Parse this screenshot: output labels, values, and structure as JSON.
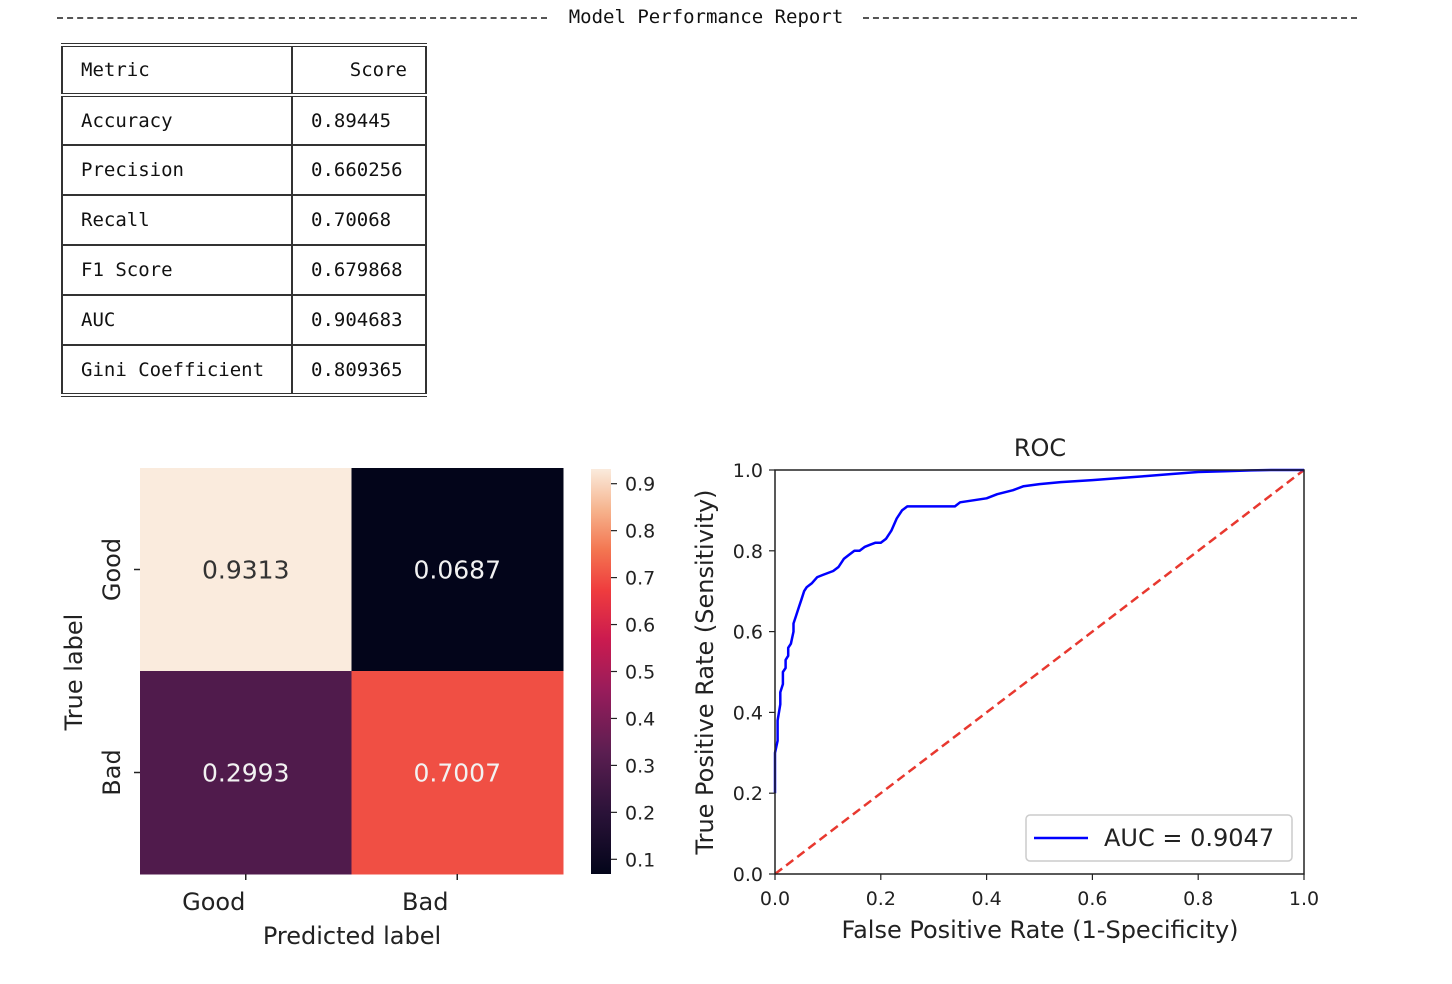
{
  "report": {
    "title": "Model Performance Report",
    "table": {
      "headers": [
        "Metric",
        "Score"
      ],
      "rows": [
        {
          "metric": "Accuracy",
          "score": "0.89445"
        },
        {
          "metric": "Precision",
          "score": "0.660256"
        },
        {
          "metric": "Recall",
          "score": "0.70068"
        },
        {
          "metric": "F1 Score",
          "score": "0.679868"
        },
        {
          "metric": "AUC",
          "score": "0.904683"
        },
        {
          "metric": "Gini Coefficient",
          "score": "0.809365"
        }
      ]
    }
  },
  "chart_data": [
    {
      "type": "heatmap",
      "title": "",
      "xlabel": "Predicted label",
      "ylabel": "True label",
      "x_categories": [
        "Good",
        "Bad"
      ],
      "y_categories": [
        "Good",
        "Bad"
      ],
      "values": [
        [
          0.9313,
          0.0687
        ],
        [
          0.2993,
          0.7007
        ]
      ],
      "value_labels": [
        [
          "0.9313",
          "0.0687"
        ],
        [
          "0.2993",
          "0.7007"
        ]
      ],
      "colorbar": {
        "ticks": [
          0.1,
          0.2,
          0.3,
          0.4,
          0.5,
          0.6,
          0.7,
          0.8,
          0.9
        ],
        "tick_labels": [
          "0.1",
          "0.2",
          "0.3",
          "0.4",
          "0.5",
          "0.6",
          "0.7",
          "0.8",
          "0.9"
        ],
        "range": [
          0.0687,
          0.9313
        ],
        "colormap": "rocket"
      }
    },
    {
      "type": "line",
      "title": "ROC",
      "xlabel": "False Positive Rate (1-Specificity)",
      "ylabel": "True Positive Rate (Sensitivity)",
      "xlim": [
        0.0,
        1.0
      ],
      "ylim": [
        0.0,
        1.0
      ],
      "x_ticks": [
        "0.0",
        "0.2",
        "0.4",
        "0.6",
        "0.8",
        "1.0"
      ],
      "y_ticks": [
        "0.0",
        "0.2",
        "0.4",
        "0.6",
        "0.8",
        "1.0"
      ],
      "legend": {
        "placement": "lower-right",
        "label": "AUC = 0.9047"
      },
      "series": [
        {
          "name": "AUC = 0.9047",
          "color": "#0000ff",
          "style": "solid",
          "x": [
            0.0,
            0.0,
            0.005,
            0.005,
            0.01,
            0.01,
            0.015,
            0.015,
            0.02,
            0.02,
            0.025,
            0.025,
            0.03,
            0.035,
            0.035,
            0.04,
            0.045,
            0.05,
            0.055,
            0.06,
            0.065,
            0.07,
            0.08,
            0.09,
            0.1,
            0.11,
            0.12,
            0.13,
            0.14,
            0.15,
            0.16,
            0.17,
            0.18,
            0.19,
            0.2,
            0.21,
            0.22,
            0.23,
            0.24,
            0.25,
            0.3,
            0.34,
            0.35,
            0.4,
            0.42,
            0.45,
            0.47,
            0.5,
            0.54,
            0.6,
            0.65,
            0.7,
            0.75,
            0.8,
            0.85,
            0.9,
            0.94,
            0.95,
            1.0
          ],
          "y": [
            0.2,
            0.3,
            0.33,
            0.38,
            0.42,
            0.45,
            0.47,
            0.5,
            0.51,
            0.53,
            0.54,
            0.56,
            0.57,
            0.6,
            0.62,
            0.64,
            0.66,
            0.68,
            0.7,
            0.71,
            0.715,
            0.72,
            0.735,
            0.74,
            0.745,
            0.75,
            0.76,
            0.78,
            0.79,
            0.8,
            0.8,
            0.81,
            0.815,
            0.82,
            0.82,
            0.83,
            0.85,
            0.88,
            0.9,
            0.91,
            0.91,
            0.91,
            0.92,
            0.93,
            0.94,
            0.95,
            0.96,
            0.965,
            0.97,
            0.975,
            0.98,
            0.985,
            0.99,
            0.995,
            0.997,
            0.999,
            1.0,
            1.0,
            1.0
          ]
        },
        {
          "name": "",
          "color": "#e8382f",
          "style": "dashed",
          "x": [
            0.0,
            1.0
          ],
          "y": [
            0.0,
            1.0
          ]
        }
      ]
    }
  ]
}
